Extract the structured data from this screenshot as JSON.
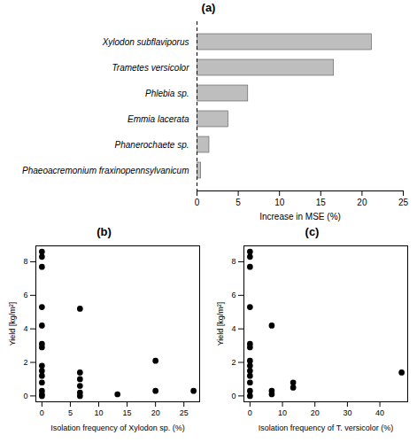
{
  "chart_data": [
    {
      "type": "bar",
      "title": "(a)",
      "orientation": "horizontal",
      "categories": [
        "Xylodon subflaviporus",
        "Trametes versicolor",
        "Phlebia sp.",
        "Emmia lacerata",
        "Phanerochaete sp.",
        "Phaeoacremonium fraxinopennsylvanicum"
      ],
      "values": [
        21.2,
        16.6,
        6.2,
        3.8,
        1.5,
        0.5
      ],
      "color": "#bebebe",
      "x_label": "Increase in MSE (%)",
      "xlim": [
        0,
        25
      ],
      "xticks": [
        0,
        5,
        10,
        15,
        20,
        25
      ]
    },
    {
      "type": "scatter",
      "title": "(b)",
      "x": [
        0,
        0,
        0,
        0,
        0,
        0,
        0,
        0,
        0,
        0,
        0,
        0,
        0,
        0,
        6.7,
        6.7,
        6.7,
        6.7,
        6.7,
        6.7,
        13.3,
        20,
        20,
        26.7
      ],
      "values": [
        8.6,
        8.3,
        7.7,
        5.3,
        4.2,
        3.1,
        2.9,
        1.8,
        1.5,
        1.2,
        0.8,
        0.3,
        0.1,
        0,
        5.2,
        1.4,
        1.0,
        0.6,
        0.2,
        0,
        0.1,
        2.1,
        0.3,
        0.3
      ],
      "color": "#000000",
      "marker": "circle",
      "x_label": "Isolation frequency of Xylodon sp. (%)",
      "y_label": "Yield [kg/m²]",
      "xlim": [
        -1.07,
        27.77
      ],
      "xticks": [
        0,
        5,
        10,
        15,
        20,
        25
      ],
      "ylim": [
        -0.35,
        8.95
      ],
      "yticks": [
        0,
        2,
        4,
        6,
        8
      ]
    },
    {
      "type": "scatter",
      "title": "(c)",
      "x": [
        0,
        0,
        0,
        0,
        0,
        0,
        0,
        0,
        0,
        0,
        0,
        0,
        0,
        6.7,
        6.7,
        6.7,
        13.3,
        13.3,
        46.7
      ],
      "values": [
        8.6,
        8.3,
        7.7,
        5.3,
        3.1,
        2.9,
        2.1,
        1.8,
        1.5,
        1.2,
        0.8,
        0.3,
        0,
        4.2,
        0.3,
        0.1,
        0.8,
        0.5,
        1.4
      ],
      "color": "#000000",
      "marker": "circle",
      "x_label": "Isolation frequency of T. versicolor (%)",
      "y_label": "Yield [kg/m²]",
      "xlim": [
        -1.87,
        48.57
      ],
      "xticks": [
        0,
        10,
        20,
        30,
        40
      ],
      "ylim": [
        -0.35,
        8.95
      ],
      "yticks": [
        0,
        2,
        4,
        6,
        8
      ]
    }
  ]
}
